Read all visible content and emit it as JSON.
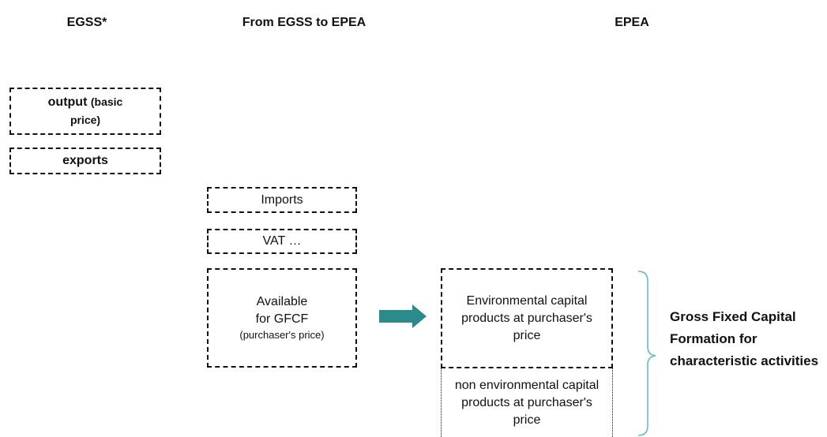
{
  "headers": [
    "EGSS*",
    "From EGSS to EPEA",
    "EPEA"
  ],
  "egss": [
    {
      "label": "output",
      "note": "(basic price)"
    },
    {
      "label": "exports"
    }
  ],
  "bridge": [
    {
      "label": "Imports"
    },
    {
      "label": "VAT …"
    },
    {
      "label": "Available for GFCF",
      "note": "(purchaser's price)"
    }
  ],
  "epea": [
    {
      "label": "Environmental capital products at purchaser's price"
    },
    {
      "label": "non environmental capital products at purchaser's price"
    }
  ],
  "brace_label": "Gross Fixed Capital Formation for characteristic activities"
}
